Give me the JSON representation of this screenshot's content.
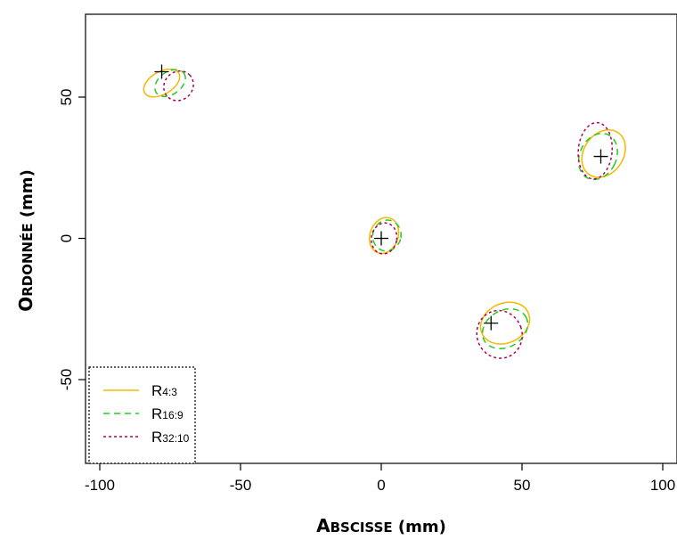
{
  "chart_data": {
    "type": "scatter",
    "xlabel": {
      "big": "A",
      "small": "BSCISSE",
      "unit": " (mm)"
    },
    "ylabel": {
      "big": "O",
      "small": "RDONNÉE",
      "unit": " (mm)"
    },
    "xlim": [
      -100,
      100
    ],
    "ylim": [
      -80,
      80
    ],
    "xticks": [
      {
        "value": -100,
        "label": "-100"
      },
      {
        "value": -50,
        "label": "-50"
      },
      {
        "value": 0,
        "label": "0"
      },
      {
        "value": 50,
        "label": "50"
      },
      {
        "value": 100,
        "label": "100"
      }
    ],
    "yticks": [
      {
        "value": -50,
        "label": "-50"
      },
      {
        "value": 0,
        "label": "0"
      },
      {
        "value": 50,
        "label": "50"
      }
    ],
    "points": [
      {
        "x": -78,
        "y": 59
      },
      {
        "x": 0,
        "y": 0
      },
      {
        "x": 78,
        "y": 29
      },
      {
        "x": 39,
        "y": -30
      }
    ],
    "series": [
      {
        "name": "R",
        "subscript": "4:3",
        "color": "#f5b800",
        "dash": "solid",
        "ellipses": [
          {
            "cx": -78,
            "cy": 55,
            "rx": 7,
            "ry": 4,
            "angle": -30
          },
          {
            "cx": 1,
            "cy": 1,
            "rx": 5,
            "ry": 6.5,
            "angle": 20
          },
          {
            "cx": 79,
            "cy": 30,
            "rx": 7,
            "ry": 9,
            "angle": 35
          },
          {
            "cx": 44,
            "cy": -30,
            "rx": 9,
            "ry": 7,
            "angle": -25
          }
        ]
      },
      {
        "name": "R",
        "subscript": "16:9",
        "color": "#22cc22",
        "dash": "7,5",
        "ellipses": [
          {
            "cx": -75,
            "cy": 55,
            "rx": 6,
            "ry": 4,
            "angle": -35
          },
          {
            "cx": 2,
            "cy": 1,
            "rx": 5,
            "ry": 5.5,
            "angle": 15
          },
          {
            "cx": 77,
            "cy": 29,
            "rx": 6.5,
            "ry": 8.5,
            "angle": 25
          },
          {
            "cx": 44,
            "cy": -32,
            "rx": 8.5,
            "ry": 6.5,
            "angle": -30
          }
        ]
      },
      {
        "name": "R",
        "subscript": "32:10",
        "color": "#b5004a",
        "dash": "3,3",
        "ellipses": [
          {
            "cx": -72,
            "cy": 54,
            "rx": 5.5,
            "ry": 5,
            "angle": -45
          },
          {
            "cx": 1,
            "cy": 0,
            "rx": 4.5,
            "ry": 5.5,
            "angle": 10
          },
          {
            "cx": 76,
            "cy": 31,
            "rx": 6,
            "ry": 10,
            "angle": 5
          },
          {
            "cx": 42,
            "cy": -34,
            "rx": 8,
            "ry": 8.5,
            "angle": -20
          }
        ]
      }
    ],
    "legend_position": "bottom-left",
    "grid": false
  }
}
